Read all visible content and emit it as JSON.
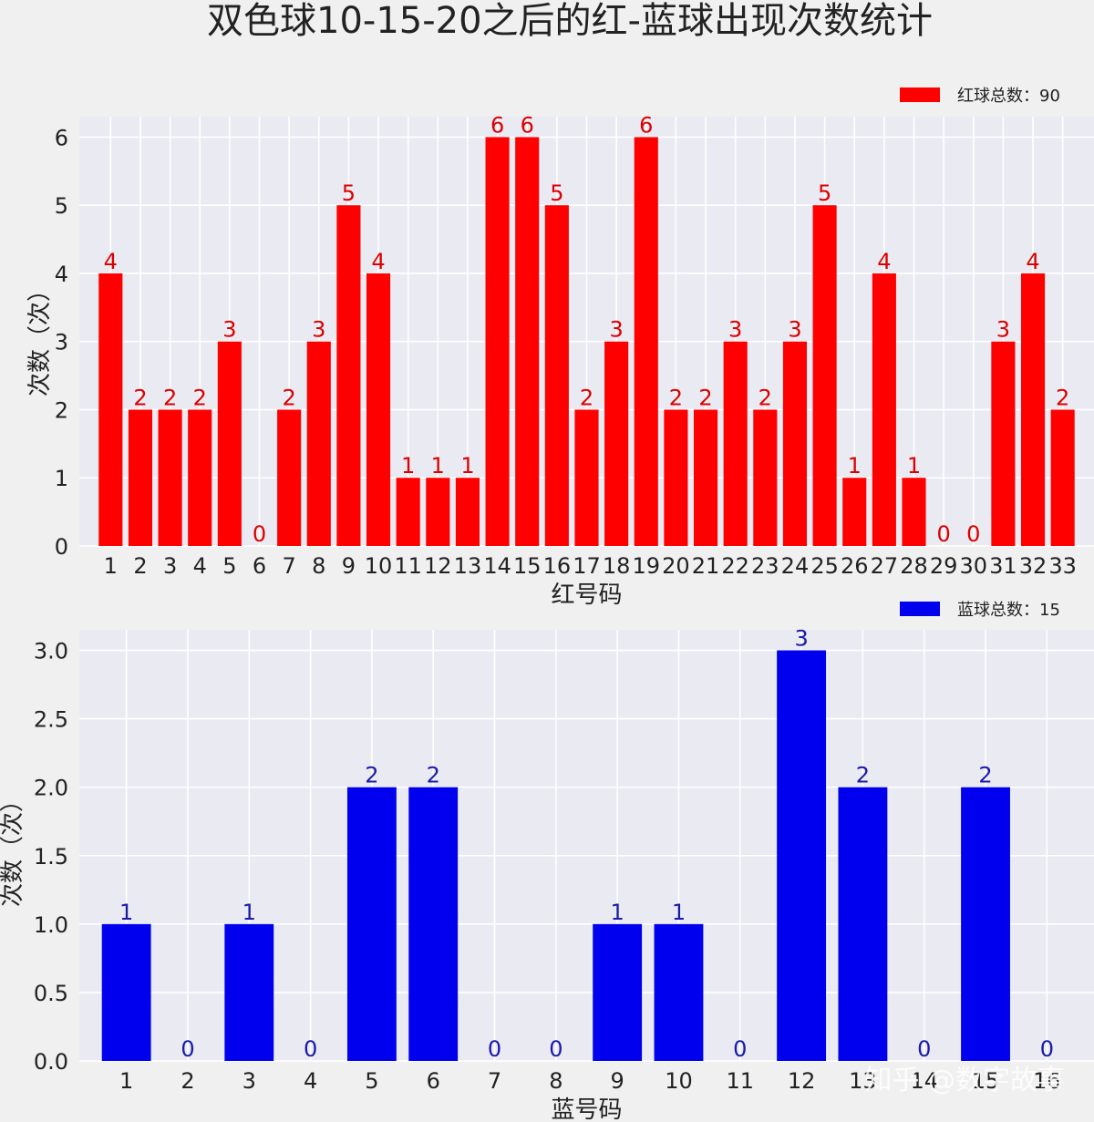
{
  "title": "双色球10-15-20之后的红-蓝球出现次数统计",
  "watermark": "知乎 @数字故事",
  "chart_data": [
    {
      "type": "bar",
      "id": "red",
      "color": "#ff0000",
      "label_color": "#dd0000",
      "legend": "红球总数：90",
      "legend_placement": "top-right",
      "xlabel": "红号码",
      "ylabel": "次数（次）",
      "ylim": [
        0,
        6.3
      ],
      "yticks": [
        "0",
        "1",
        "2",
        "3",
        "4",
        "5",
        "6"
      ],
      "grid": true,
      "categories": [
        "1",
        "2",
        "3",
        "4",
        "5",
        "6",
        "7",
        "8",
        "9",
        "10",
        "11",
        "12",
        "13",
        "14",
        "15",
        "16",
        "17",
        "18",
        "19",
        "20",
        "21",
        "22",
        "23",
        "24",
        "25",
        "26",
        "27",
        "28",
        "29",
        "30",
        "31",
        "32",
        "33"
      ],
      "values": [
        4,
        2,
        2,
        2,
        3,
        0,
        2,
        3,
        5,
        4,
        1,
        1,
        1,
        6,
        6,
        5,
        2,
        3,
        6,
        2,
        2,
        3,
        2,
        3,
        5,
        1,
        4,
        1,
        0,
        0,
        3,
        4,
        2
      ]
    },
    {
      "type": "bar",
      "id": "blue",
      "color": "#0000ee",
      "label_color": "#1a1aaa",
      "legend": "蓝球总数：15",
      "legend_placement": "top-right",
      "xlabel": "蓝号码",
      "ylabel": "次数（次）",
      "ylim": [
        0,
        3.15
      ],
      "yticks": [
        "0.0",
        "0.5",
        "1.0",
        "1.5",
        "2.0",
        "2.5",
        "3.0"
      ],
      "grid": true,
      "categories": [
        "1",
        "2",
        "3",
        "4",
        "5",
        "6",
        "7",
        "8",
        "9",
        "10",
        "11",
        "12",
        "13",
        "14",
        "15",
        "16"
      ],
      "values": [
        1,
        0,
        1,
        0,
        2,
        2,
        0,
        0,
        1,
        1,
        0,
        3,
        2,
        0,
        2,
        0
      ]
    }
  ]
}
